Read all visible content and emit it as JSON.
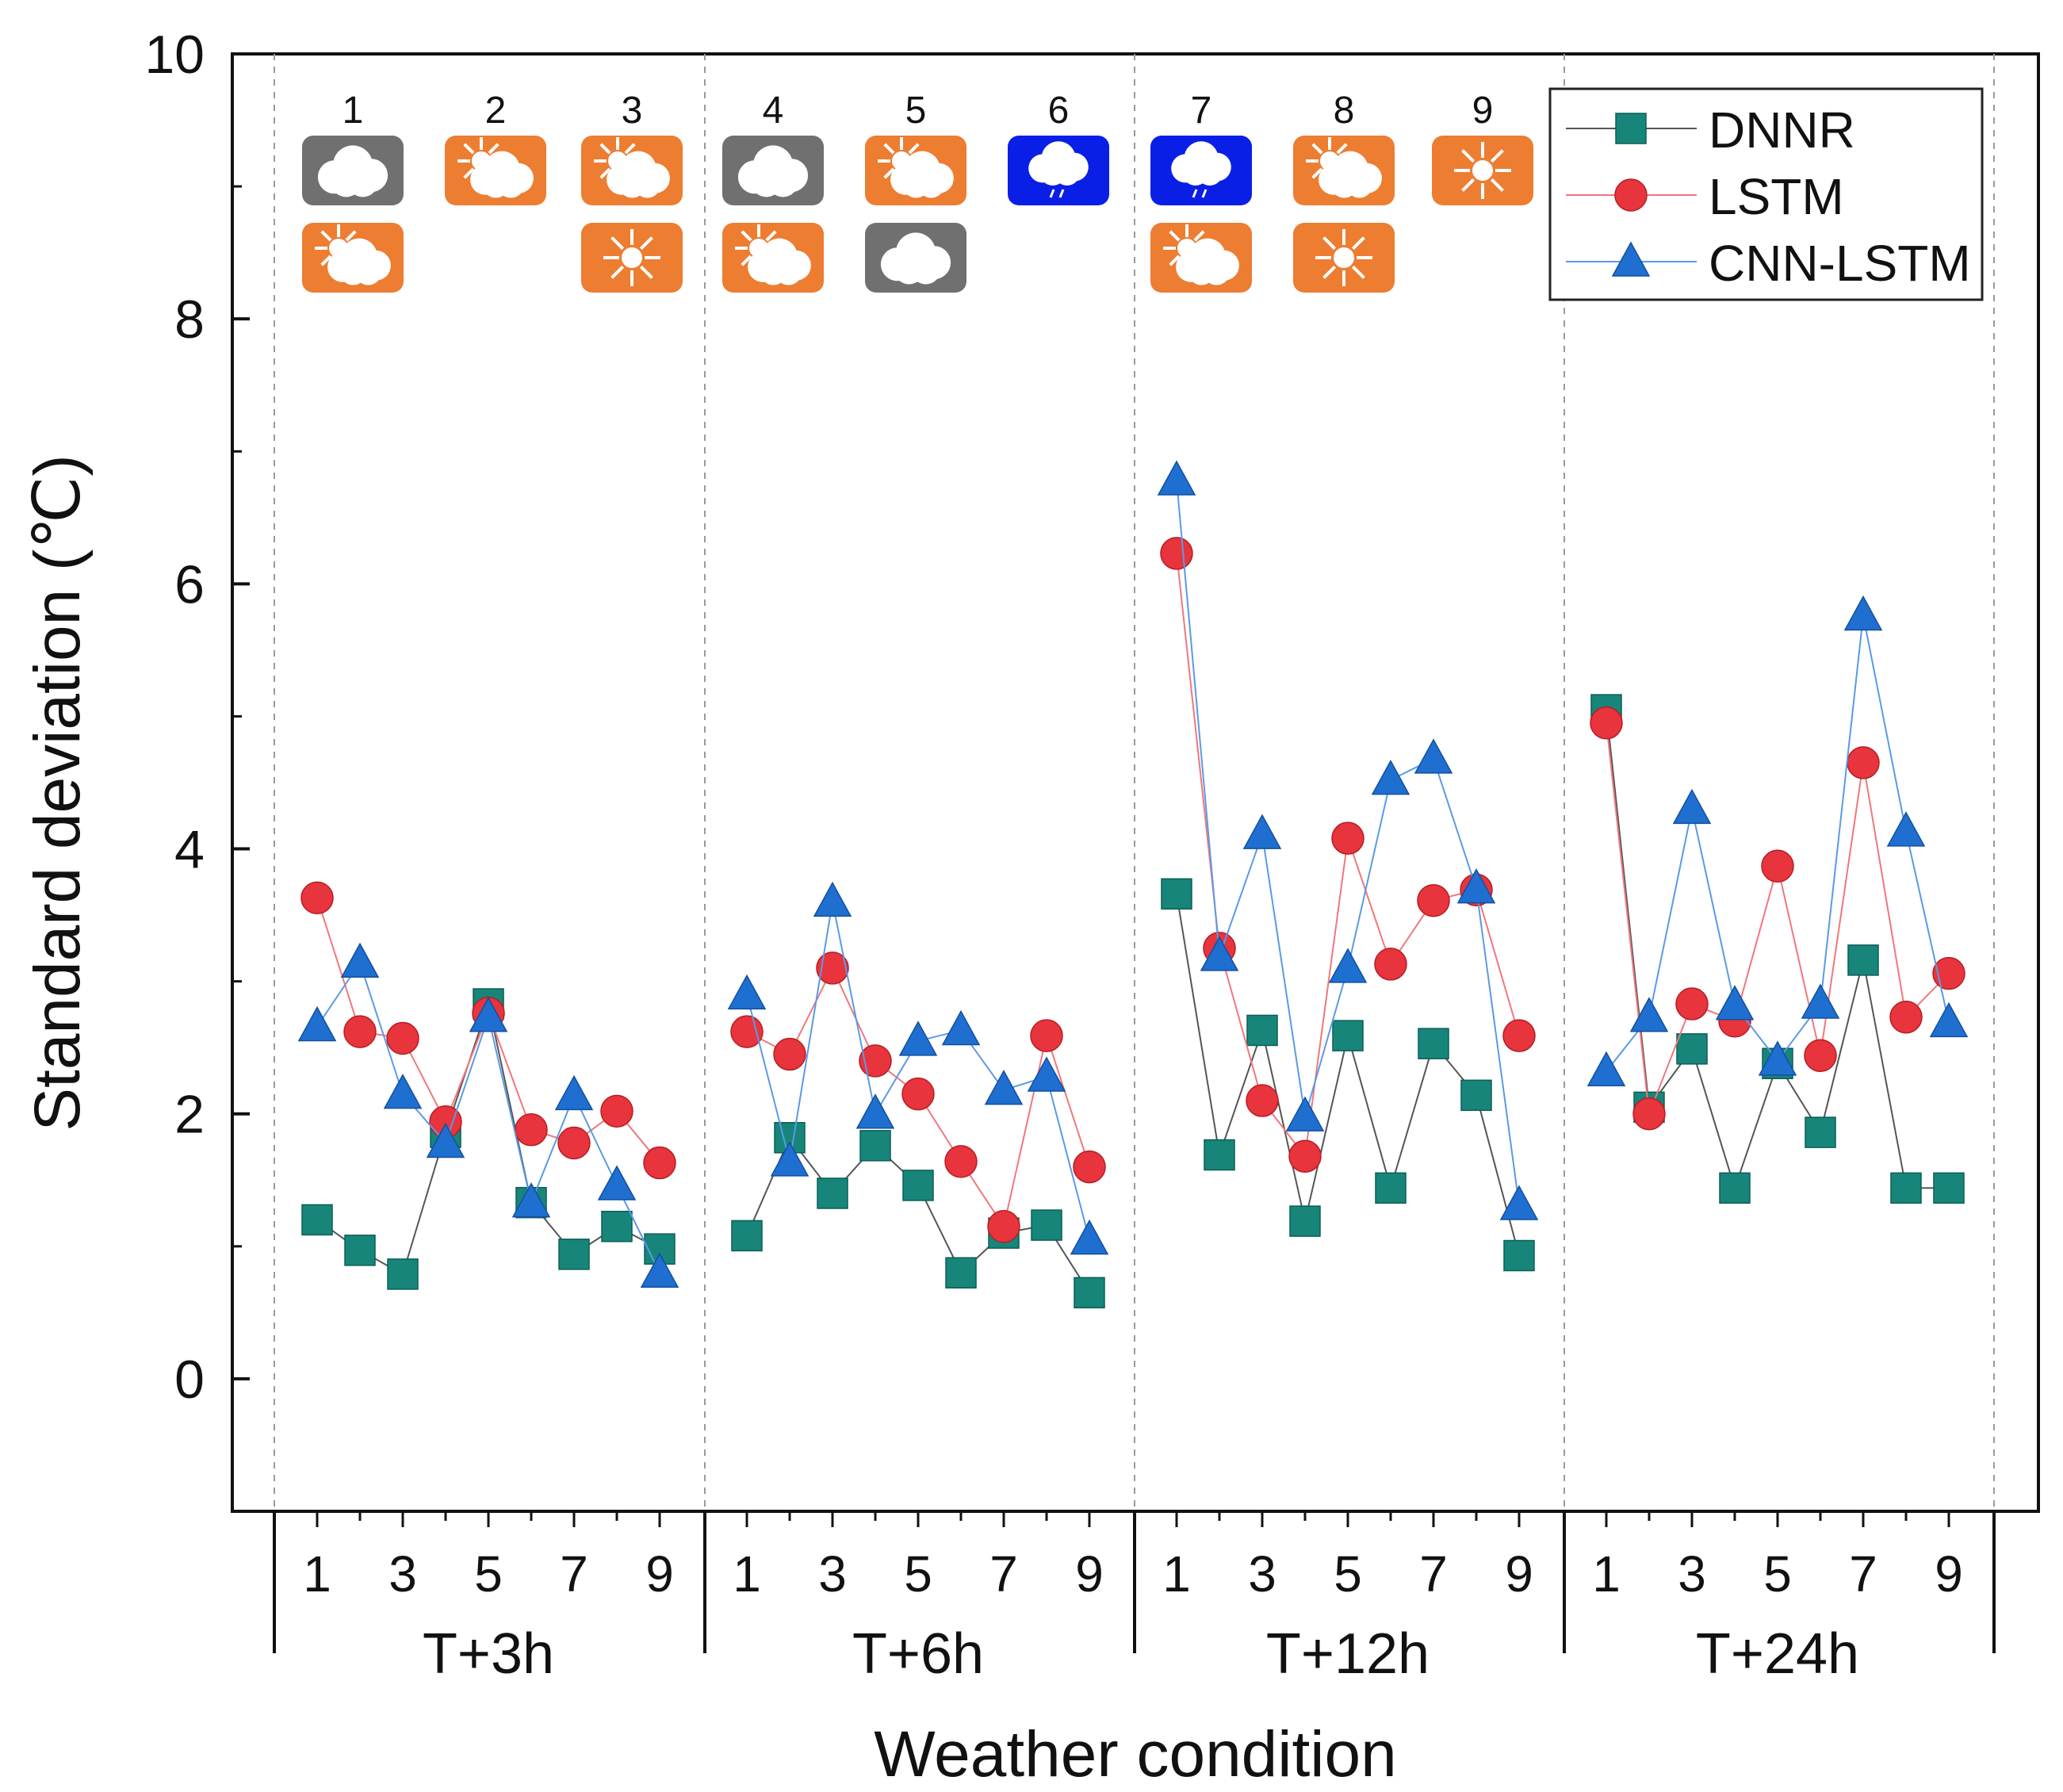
{
  "chart_data": {
    "type": "line",
    "title": "",
    "xlabel": "Weather condition",
    "ylabel": "Standard deviation (℃)",
    "ylim": [
      -1,
      10
    ],
    "yticks": [
      "0",
      "2",
      "4",
      "6",
      "8",
      "10"
    ],
    "grid": false,
    "legend_position": "top-right",
    "x_ticks": [
      "1",
      "3",
      "5",
      "7",
      "9"
    ],
    "groups": [
      {
        "label": "T+3h"
      },
      {
        "label": "T+6h"
      },
      {
        "label": "T+12h"
      },
      {
        "label": "T+24h"
      }
    ],
    "categories": [
      "1",
      "2",
      "3",
      "4",
      "5",
      "6",
      "7",
      "8",
      "9"
    ],
    "series": [
      {
        "name": "DNNR",
        "color": "#17857a",
        "marker": "square",
        "values": [
          [
            1.2,
            0.97,
            0.79,
            1.86,
            2.83,
            1.33,
            0.94,
            1.15,
            0.98
          ],
          [
            1.08,
            1.82,
            1.4,
            1.76,
            1.46,
            0.8,
            1.1,
            1.16,
            0.65
          ],
          [
            3.66,
            1.69,
            2.63,
            1.19,
            2.59,
            1.44,
            2.53,
            2.14,
            0.93
          ],
          [
            5.05,
            2.05,
            2.49,
            1.44,
            2.38,
            1.86,
            3.16,
            1.44,
            1.44
          ]
        ]
      },
      {
        "name": "LSTM",
        "color": "#e8343c",
        "marker": "circle",
        "values": [
          [
            3.63,
            2.62,
            2.57,
            1.94,
            2.76,
            1.88,
            1.78,
            2.02,
            1.63
          ],
          [
            2.62,
            2.45,
            3.1,
            2.4,
            2.15,
            1.64,
            1.15,
            2.59,
            1.6
          ],
          [
            6.23,
            3.25,
            2.1,
            1.68,
            4.08,
            3.13,
            3.61,
            3.69,
            2.59
          ],
          [
            4.95,
            2.0,
            2.83,
            2.7,
            3.87,
            2.44,
            4.65,
            2.73,
            3.06
          ]
        ]
      },
      {
        "name": "CNN-LSTM",
        "color": "#1f6fd1",
        "marker": "triangle",
        "values": [
          [
            2.66,
            3.14,
            2.15,
            1.78,
            2.73,
            1.33,
            2.14,
            1.46,
            0.8
          ],
          [
            2.9,
            1.64,
            3.6,
            2.0,
            2.55,
            2.63,
            2.18,
            2.28,
            1.05
          ],
          [
            6.78,
            3.19,
            4.11,
            1.98,
            3.1,
            4.52,
            4.68,
            3.7,
            1.31
          ],
          [
            2.32,
            2.73,
            4.3,
            2.82,
            2.4,
            2.83,
            5.76,
            4.13,
            2.69
          ]
        ]
      }
    ]
  },
  "weather_icons": {
    "numbers": [
      "1",
      "2",
      "3",
      "4",
      "5",
      "6",
      "7",
      "8",
      "9"
    ],
    "colors": {
      "cloudy": "#707070",
      "partly": "#ed7d31",
      "sunny": "#ed7d31",
      "rain": "#0a1fe6"
    },
    "icons": [
      [
        "cloud-icon",
        "partly-cloudy-icon"
      ],
      [
        "partly-cloudy-icon"
      ],
      [
        "partly-cloudy-icon",
        "sun-icon"
      ],
      [
        "cloud-icon",
        "partly-cloudy-icon"
      ],
      [
        "partly-cloudy-icon",
        "cloud-icon"
      ],
      [
        "rain-cloud-icon"
      ],
      [
        "rain-cloud-icon",
        "partly-cloudy-icon"
      ],
      [
        "partly-cloudy-icon",
        "sun-icon"
      ],
      [
        "sun-icon"
      ]
    ]
  }
}
